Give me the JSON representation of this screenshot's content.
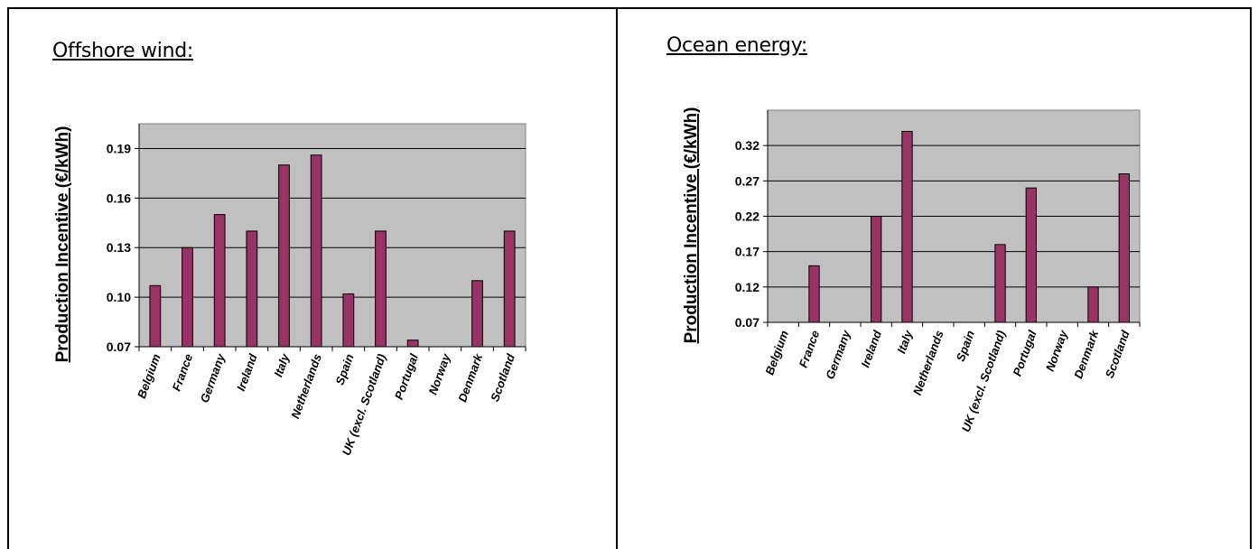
{
  "panels": [
    {
      "title": "Offshore wind:"
    },
    {
      "title": "Ocean energy:"
    }
  ],
  "colors": {
    "plot_bg": "#c0c0c0",
    "bar": "#993366",
    "grid": "#000000"
  },
  "chart_data": [
    {
      "type": "bar",
      "title": "",
      "ylabel": "Production Incentive (€/kWh)",
      "ylim": [
        0.07,
        0.205
      ],
      "yticks": [
        0.07,
        0.1,
        0.13,
        0.16,
        0.19
      ],
      "ytick_labels": [
        "0.07",
        "0.10",
        "0.13",
        "0.16",
        "0.19"
      ],
      "categories": [
        "Belgium",
        "France",
        "Germany",
        "Ireland",
        "Italy",
        "Netherlands",
        "Spain",
        "UK (excl. Scotland)",
        "Portugal",
        "Norway",
        "Denmark",
        "Scotland"
      ],
      "values": [
        0.107,
        0.13,
        0.15,
        0.14,
        0.18,
        0.186,
        0.102,
        0.14,
        0.074,
        null,
        0.11,
        0.14
      ],
      "grid": true,
      "legend": "none"
    },
    {
      "type": "bar",
      "title": "",
      "ylabel": "Production Incentive (€/kWh)",
      "ylim": [
        0.07,
        0.37
      ],
      "yticks": [
        0.07,
        0.12,
        0.17,
        0.22,
        0.27,
        0.32
      ],
      "ytick_labels": [
        "0.07",
        "0.12",
        "0.17",
        "0.22",
        "0.27",
        "0.32"
      ],
      "categories": [
        "Belgium",
        "France",
        "Germany",
        "Ireland",
        "Italy",
        "Netherlands",
        "Spain",
        "UK (excl. Scotland)",
        "Portugal",
        "Norway",
        "Denmark",
        "Scotland"
      ],
      "values": [
        null,
        0.15,
        null,
        0.22,
        0.34,
        null,
        null,
        0.18,
        0.26,
        null,
        0.12,
        0.28
      ],
      "grid": true,
      "legend": "none"
    }
  ]
}
